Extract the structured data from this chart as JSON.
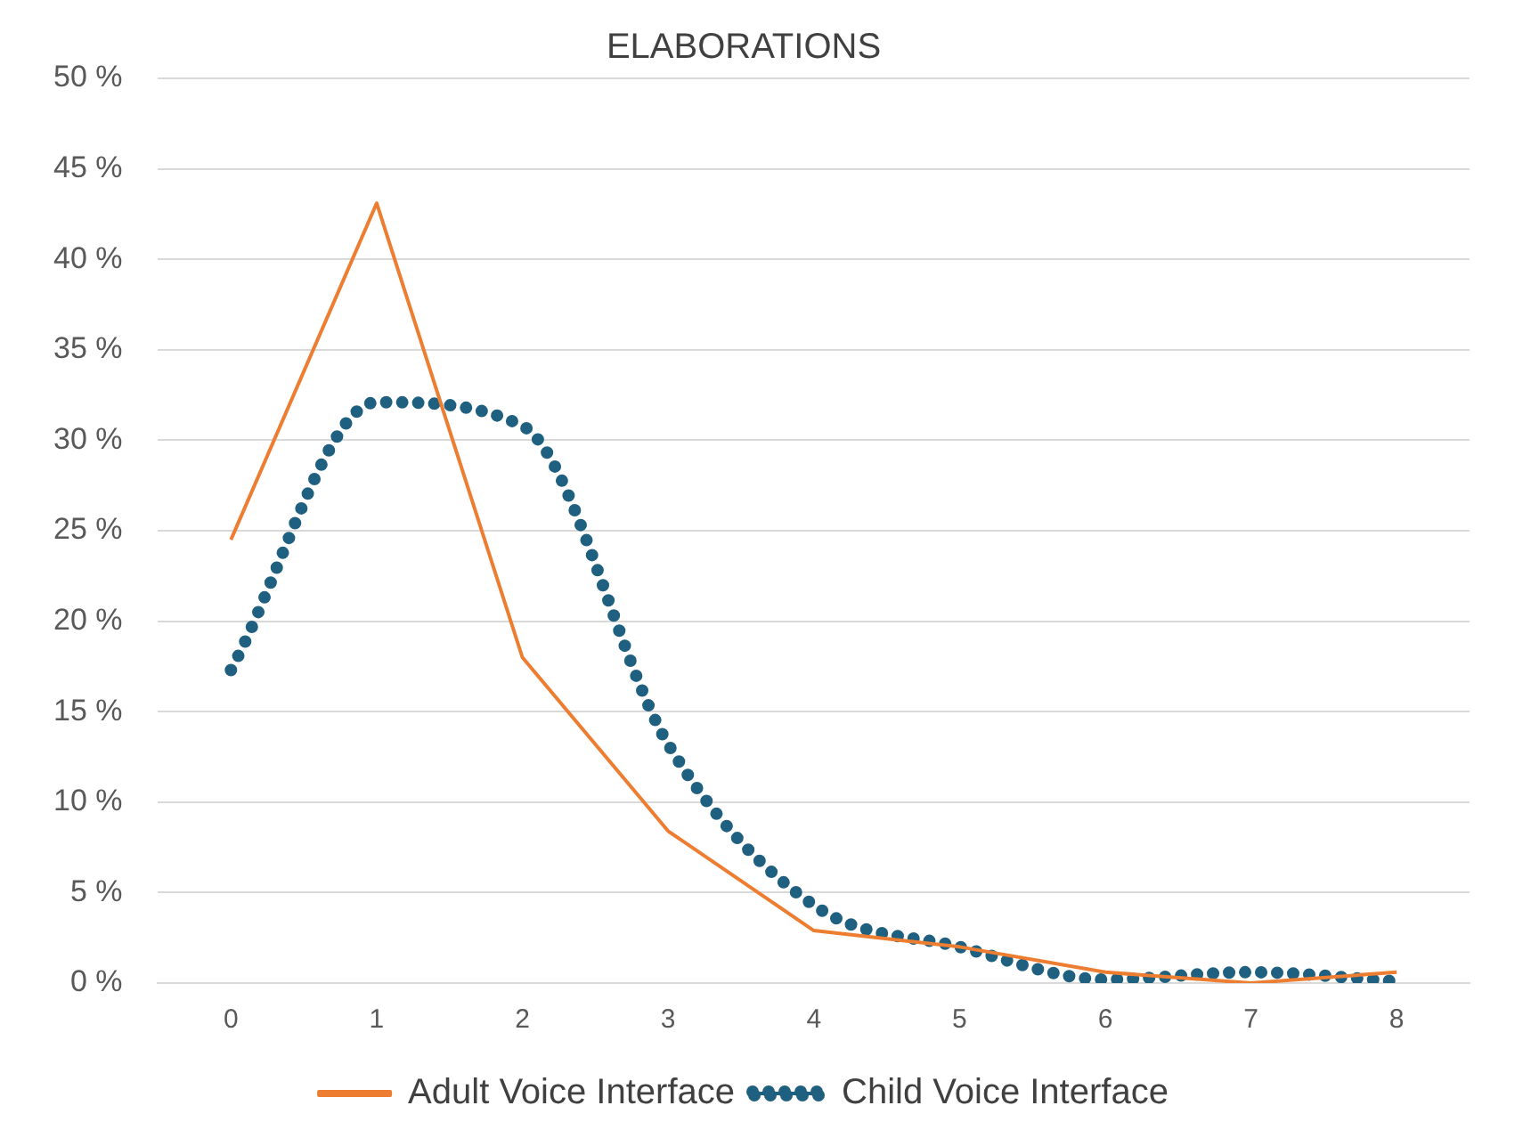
{
  "chart_data": {
    "type": "line",
    "title": "ELABORATIONS",
    "categories": [
      "0",
      "1",
      "2",
      "3",
      "4",
      "5",
      "6",
      "7",
      "8"
    ],
    "series": [
      {
        "name": "Adult Voice Interface",
        "color": "#ed7d31",
        "line_style": "solid",
        "values": [
          24.5,
          43.1,
          18.0,
          8.4,
          2.9,
          2.0,
          0.6,
          0.0,
          0.6
        ]
      },
      {
        "name": "Child Voice Interface",
        "color": "#1f5f7f",
        "line_style": "dotted",
        "values": [
          17.3,
          32.1,
          30.8,
          13.2,
          4.3,
          2.0,
          0.2,
          0.6,
          0.1
        ]
      }
    ],
    "ylim": [
      0,
      50
    ],
    "yticks": [
      {
        "value": 0,
        "label": "0 %"
      },
      {
        "value": 5,
        "label": "5 %"
      },
      {
        "value": 10,
        "label": "10 %"
      },
      {
        "value": 15,
        "label": "15 %"
      },
      {
        "value": 20,
        "label": "20 %"
      },
      {
        "value": 25,
        "label": "25 %"
      },
      {
        "value": 30,
        "label": "30 %"
      },
      {
        "value": 35,
        "label": "35 %"
      },
      {
        "value": 40,
        "label": "40 %"
      },
      {
        "value": 45,
        "label": "45 %"
      },
      {
        "value": 50,
        "label": "50 %"
      }
    ],
    "grid": "y",
    "legend": "bottom",
    "marker": "none"
  }
}
